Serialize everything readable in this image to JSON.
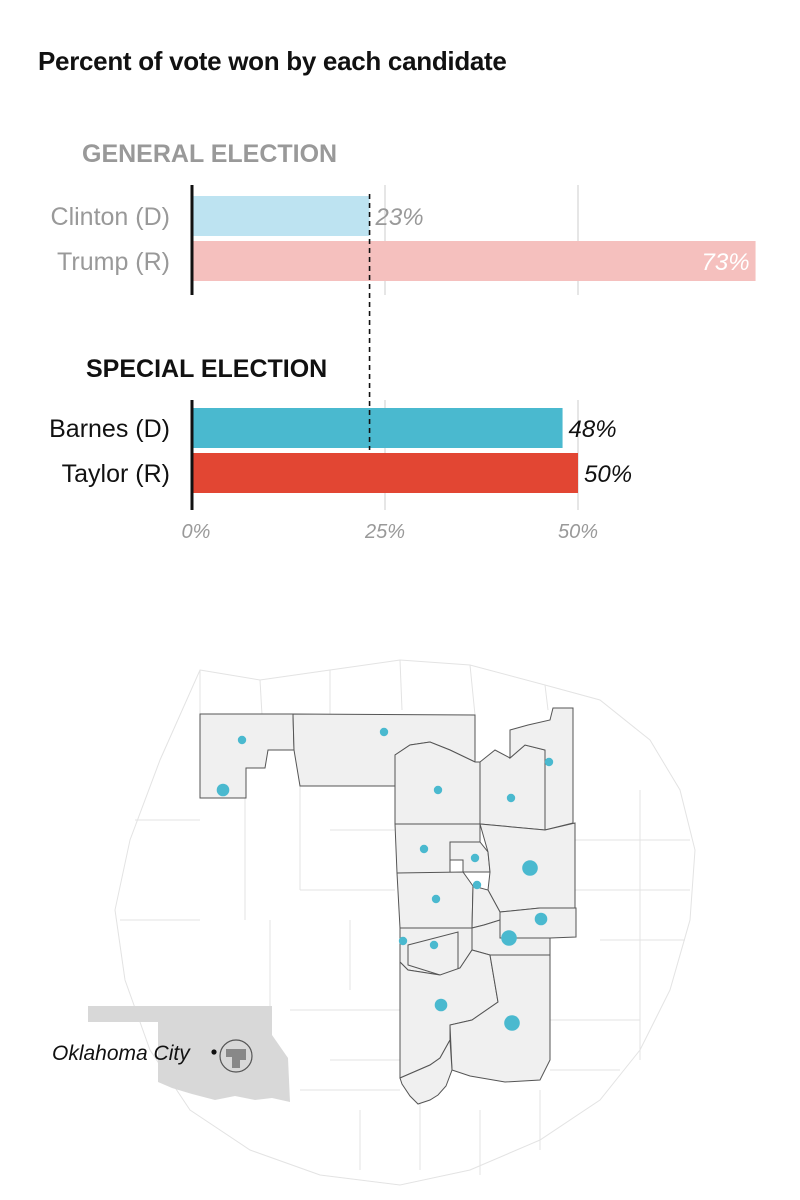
{
  "title": "Percent of vote won by each candidate",
  "chart_data": {
    "type": "bar",
    "orientation": "horizontal",
    "title": "Percent of vote won by each candidate",
    "xlim": [
      0,
      75
    ],
    "xticks": [
      0,
      25,
      50
    ],
    "tick_labels": [
      "0%",
      "25%",
      "50%"
    ],
    "reference_line": 23,
    "sections": [
      {
        "label": "GENERAL ELECTION",
        "bars": [
          {
            "name": "Clinton (D)",
            "value": 23,
            "label": "23%",
            "color": "#bde3f1"
          },
          {
            "name": "Trump (R)",
            "value": 73,
            "label": "73%",
            "color": "#f5c0be"
          }
        ]
      },
      {
        "label": "SPECIAL ELECTION",
        "bars": [
          {
            "name": "Barnes (D)",
            "value": 48,
            "label": "48%",
            "color": "#4ab9cf"
          },
          {
            "name": "Taylor (R)",
            "value": 50,
            "label": "50%",
            "color": "#e24633"
          }
        ]
      }
    ]
  },
  "map": {
    "city_label": "Oklahoma City",
    "colors": {
      "district_fill": "#f0f0f0",
      "state_fill": "#d8d8d8",
      "dot": "#4ab9cf"
    },
    "dots": [
      {
        "size": "small"
      },
      {
        "size": "small"
      },
      {
        "size": "medium"
      },
      {
        "size": "small"
      },
      {
        "size": "small"
      },
      {
        "size": "small"
      },
      {
        "size": "small"
      },
      {
        "size": "small"
      },
      {
        "size": "large"
      },
      {
        "size": "small"
      },
      {
        "size": "small"
      },
      {
        "size": "medium"
      },
      {
        "size": "small"
      },
      {
        "size": "small"
      },
      {
        "size": "large"
      },
      {
        "size": "medium"
      },
      {
        "size": "large"
      },
      {
        "size": "medium"
      }
    ]
  }
}
